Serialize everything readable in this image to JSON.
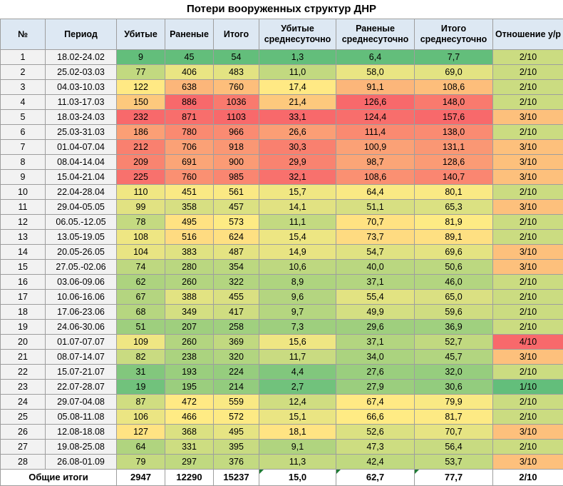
{
  "title": "Потери вооруженных структур ДНР",
  "colors": {
    "header_bg": "#dde8f3",
    "scale_low": "#63be7b",
    "scale_mid": "#ffeb84",
    "scale_high": "#f8696b",
    "neutral_bg": "#f2f2f2",
    "ratio_bg": "#e0ecb0"
  },
  "headers": {
    "num": "№",
    "period": "Период",
    "killed": "Убитые",
    "wounded": "Раненые",
    "total": "Итого",
    "killed_avg": "Убитые среднесуточно",
    "wounded_avg": "Раненые среднесуточно",
    "total_avg": "Итого среднесуточно",
    "ratio": "Отношение у/р"
  },
  "rows": [
    {
      "n": "1",
      "period": "18.02-24.02",
      "killed": "9",
      "wounded": "45",
      "total": "54",
      "killed_avg": "1,3",
      "wounded_avg": "6,4",
      "total_avg": "7,7",
      "ratio": "2/10"
    },
    {
      "n": "2",
      "period": "25.02-03.03",
      "killed": "77",
      "wounded": "406",
      "total": "483",
      "killed_avg": "11,0",
      "wounded_avg": "58,0",
      "total_avg": "69,0",
      "ratio": "2/10"
    },
    {
      "n": "3",
      "period": "04.03-10.03",
      "killed": "122",
      "wounded": "638",
      "total": "760",
      "killed_avg": "17,4",
      "wounded_avg": "91,1",
      "total_avg": "108,6",
      "ratio": "2/10"
    },
    {
      "n": "4",
      "period": "11.03-17.03",
      "killed": "150",
      "wounded": "886",
      "total": "1036",
      "killed_avg": "21,4",
      "wounded_avg": "126,6",
      "total_avg": "148,0",
      "ratio": "2/10"
    },
    {
      "n": "5",
      "period": "18.03-24.03",
      "killed": "232",
      "wounded": "871",
      "total": "1103",
      "killed_avg": "33,1",
      "wounded_avg": "124,4",
      "total_avg": "157,6",
      "ratio": "3/10"
    },
    {
      "n": "6",
      "period": "25.03-31.03",
      "killed": "186",
      "wounded": "780",
      "total": "966",
      "killed_avg": "26,6",
      "wounded_avg": "111,4",
      "total_avg": "138,0",
      "ratio": "2/10"
    },
    {
      "n": "7",
      "period": "01.04-07.04",
      "killed": "212",
      "wounded": "706",
      "total": "918",
      "killed_avg": "30,3",
      "wounded_avg": "100,9",
      "total_avg": "131,1",
      "ratio": "3/10"
    },
    {
      "n": "8",
      "period": "08.04-14.04",
      "killed": "209",
      "wounded": "691",
      "total": "900",
      "killed_avg": "29,9",
      "wounded_avg": "98,7",
      "total_avg": "128,6",
      "ratio": "3/10"
    },
    {
      "n": "9",
      "period": "15.04-21.04",
      "killed": "225",
      "wounded": "760",
      "total": "985",
      "killed_avg": "32,1",
      "wounded_avg": "108,6",
      "total_avg": "140,7",
      "ratio": "3/10"
    },
    {
      "n": "10",
      "period": "22.04-28.04",
      "killed": "110",
      "wounded": "451",
      "total": "561",
      "killed_avg": "15,7",
      "wounded_avg": "64,4",
      "total_avg": "80,1",
      "ratio": "2/10"
    },
    {
      "n": "11",
      "period": "29.04-05.05",
      "killed": "99",
      "wounded": "358",
      "total": "457",
      "killed_avg": "14,1",
      "wounded_avg": "51,1",
      "total_avg": "65,3",
      "ratio": "3/10"
    },
    {
      "n": "12",
      "period": "06.05.-12.05",
      "killed": "78",
      "wounded": "495",
      "total": "573",
      "killed_avg": "11,1",
      "wounded_avg": "70,7",
      "total_avg": "81,9",
      "ratio": "2/10"
    },
    {
      "n": "13",
      "period": "13.05-19.05",
      "killed": "108",
      "wounded": "516",
      "total": "624",
      "killed_avg": "15,4",
      "wounded_avg": "73,7",
      "total_avg": "89,1",
      "ratio": "2/10"
    },
    {
      "n": "14",
      "period": "20.05-26.05",
      "killed": "104",
      "wounded": "383",
      "total": "487",
      "killed_avg": "14,9",
      "wounded_avg": "54,7",
      "total_avg": "69,6",
      "ratio": "3/10"
    },
    {
      "n": "15",
      "period": "27.05.-02.06",
      "killed": "74",
      "wounded": "280",
      "total": "354",
      "killed_avg": "10,6",
      "wounded_avg": "40,0",
      "total_avg": "50,6",
      "ratio": "3/10"
    },
    {
      "n": "16",
      "period": "03.06-09.06",
      "killed": "62",
      "wounded": "260",
      "total": "322",
      "killed_avg": "8,9",
      "wounded_avg": "37,1",
      "total_avg": "46,0",
      "ratio": "2/10"
    },
    {
      "n": "17",
      "period": "10.06-16.06",
      "killed": "67",
      "wounded": "388",
      "total": "455",
      "killed_avg": "9,6",
      "wounded_avg": "55,4",
      "total_avg": "65,0",
      "ratio": "2/10"
    },
    {
      "n": "18",
      "period": "17.06-23.06",
      "killed": "68",
      "wounded": "349",
      "total": "417",
      "killed_avg": "9,7",
      "wounded_avg": "49,9",
      "total_avg": "59,6",
      "ratio": "2/10"
    },
    {
      "n": "19",
      "period": "24.06-30.06",
      "killed": "51",
      "wounded": "207",
      "total": "258",
      "killed_avg": "7,3",
      "wounded_avg": "29,6",
      "total_avg": "36,9",
      "ratio": "2/10"
    },
    {
      "n": "20",
      "period": "01.07-07.07",
      "killed": "109",
      "wounded": "260",
      "total": "369",
      "killed_avg": "15,6",
      "wounded_avg": "37,1",
      "total_avg": "52,7",
      "ratio": "4/10"
    },
    {
      "n": "21",
      "period": "08.07-14.07",
      "killed": "82",
      "wounded": "238",
      "total": "320",
      "killed_avg": "11,7",
      "wounded_avg": "34,0",
      "total_avg": "45,7",
      "ratio": "3/10"
    },
    {
      "n": "22",
      "period": "15.07-21.07",
      "killed": "31",
      "wounded": "193",
      "total": "224",
      "killed_avg": "4,4",
      "wounded_avg": "27,6",
      "total_avg": "32,0",
      "ratio": "2/10"
    },
    {
      "n": "23",
      "period": "22.07-28.07",
      "killed": "19",
      "wounded": "195",
      "total": "214",
      "killed_avg": "2,7",
      "wounded_avg": "27,9",
      "total_avg": "30,6",
      "ratio": "1/10"
    },
    {
      "n": "24",
      "period": "29.07-04.08",
      "killed": "87",
      "wounded": "472",
      "total": "559",
      "killed_avg": "12,4",
      "wounded_avg": "67,4",
      "total_avg": "79,9",
      "ratio": "2/10"
    },
    {
      "n": "25",
      "period": "05.08-11.08",
      "killed": "106",
      "wounded": "466",
      "total": "572",
      "killed_avg": "15,1",
      "wounded_avg": "66,6",
      "total_avg": "81,7",
      "ratio": "2/10"
    },
    {
      "n": "26",
      "period": "12.08-18.08",
      "killed": "127",
      "wounded": "368",
      "total": "495",
      "killed_avg": "18,1",
      "wounded_avg": "52,6",
      "total_avg": "70,7",
      "ratio": "3/10"
    },
    {
      "n": "27",
      "period": "19.08-25.08",
      "killed": "64",
      "wounded": "331",
      "total": "395",
      "killed_avg": "9,1",
      "wounded_avg": "47,3",
      "total_avg": "56,4",
      "ratio": "2/10"
    },
    {
      "n": "28",
      "period": "26.08-01.09",
      "killed": "79",
      "wounded": "297",
      "total": "376",
      "killed_avg": "11,3",
      "wounded_avg": "42,4",
      "total_avg": "53,7",
      "ratio": "3/10"
    }
  ],
  "totals": {
    "label": "Общие итоги",
    "killed": "2947",
    "wounded": "12290",
    "total": "15237",
    "killed_avg": "15,0",
    "wounded_avg": "62,7",
    "total_avg": "77,7",
    "ratio": "2/10"
  },
  "chart_data": {
    "type": "table",
    "title": "Потери вооруженных структур ДНР",
    "columns": [
      "№",
      "Период",
      "Убитые",
      "Раненые",
      "Итого",
      "Убитые среднесуточно",
      "Раненые среднесуточно",
      "Итого среднесуточно",
      "Отношение у/р"
    ],
    "periods": [
      "18.02-24.02",
      "25.02-03.03",
      "04.03-10.03",
      "11.03-17.03",
      "18.03-24.03",
      "25.03-31.03",
      "01.04-07.04",
      "08.04-14.04",
      "15.04-21.04",
      "22.04-28.04",
      "29.04-05.05",
      "06.05.-12.05",
      "13.05-19.05",
      "20.05-26.05",
      "27.05.-02.06",
      "03.06-09.06",
      "10.06-16.06",
      "17.06-23.06",
      "24.06-30.06",
      "01.07-07.07",
      "08.07-14.07",
      "15.07-21.07",
      "22.07-28.07",
      "29.07-04.08",
      "05.08-11.08",
      "12.08-18.08",
      "19.08-25.08",
      "26.08-01.09"
    ],
    "series": [
      {
        "name": "Убитые",
        "values": [
          9,
          77,
          122,
          150,
          232,
          186,
          212,
          209,
          225,
          110,
          99,
          78,
          108,
          104,
          74,
          62,
          67,
          68,
          51,
          109,
          82,
          31,
          19,
          87,
          106,
          127,
          64,
          79
        ]
      },
      {
        "name": "Раненые",
        "values": [
          45,
          406,
          638,
          886,
          871,
          780,
          706,
          691,
          760,
          451,
          358,
          495,
          516,
          383,
          280,
          260,
          388,
          349,
          207,
          260,
          238,
          193,
          195,
          472,
          466,
          368,
          331,
          297
        ]
      },
      {
        "name": "Итого",
        "values": [
          54,
          483,
          760,
          1036,
          1103,
          966,
          918,
          900,
          985,
          561,
          457,
          573,
          624,
          487,
          354,
          322,
          455,
          417,
          258,
          369,
          320,
          224,
          214,
          559,
          572,
          495,
          395,
          376
        ]
      },
      {
        "name": "Убитые среднесуточно",
        "values": [
          1.3,
          11.0,
          17.4,
          21.4,
          33.1,
          26.6,
          30.3,
          29.9,
          32.1,
          15.7,
          14.1,
          11.1,
          15.4,
          14.9,
          10.6,
          8.9,
          9.6,
          9.7,
          7.3,
          15.6,
          11.7,
          4.4,
          2.7,
          12.4,
          15.1,
          18.1,
          9.1,
          11.3
        ]
      },
      {
        "name": "Раненые среднесуточно",
        "values": [
          6.4,
          58.0,
          91.1,
          126.6,
          124.4,
          111.4,
          100.9,
          98.7,
          108.6,
          64.4,
          51.1,
          70.7,
          73.7,
          54.7,
          40.0,
          37.1,
          55.4,
          49.9,
          29.6,
          37.1,
          34.0,
          27.6,
          27.9,
          67.4,
          66.6,
          52.6,
          47.3,
          42.4
        ]
      },
      {
        "name": "Итого среднесуточно",
        "values": [
          7.7,
          69.0,
          108.6,
          148.0,
          157.6,
          138.0,
          131.1,
          128.6,
          140.7,
          80.1,
          65.3,
          81.9,
          89.1,
          69.6,
          50.6,
          46.0,
          65.0,
          59.6,
          36.9,
          52.7,
          45.7,
          32.0,
          30.6,
          79.9,
          81.7,
          70.7,
          56.4,
          53.7
        ]
      },
      {
        "name": "Отношение у/р",
        "values": [
          "2/10",
          "2/10",
          "2/10",
          "2/10",
          "3/10",
          "2/10",
          "3/10",
          "3/10",
          "3/10",
          "2/10",
          "3/10",
          "2/10",
          "2/10",
          "3/10",
          "3/10",
          "2/10",
          "2/10",
          "2/10",
          "2/10",
          "4/10",
          "3/10",
          "2/10",
          "1/10",
          "2/10",
          "2/10",
          "3/10",
          "2/10",
          "3/10"
        ]
      }
    ],
    "totals": {
      "Убитые": 2947,
      "Раненые": 12290,
      "Итого": 15237,
      "Убитые среднесуточно": 15.0,
      "Раненые среднесуточно": 62.7,
      "Итого среднесуточно": 77.7,
      "Отношение у/р": "2/10"
    },
    "color_scale": "green-yellow-red"
  }
}
